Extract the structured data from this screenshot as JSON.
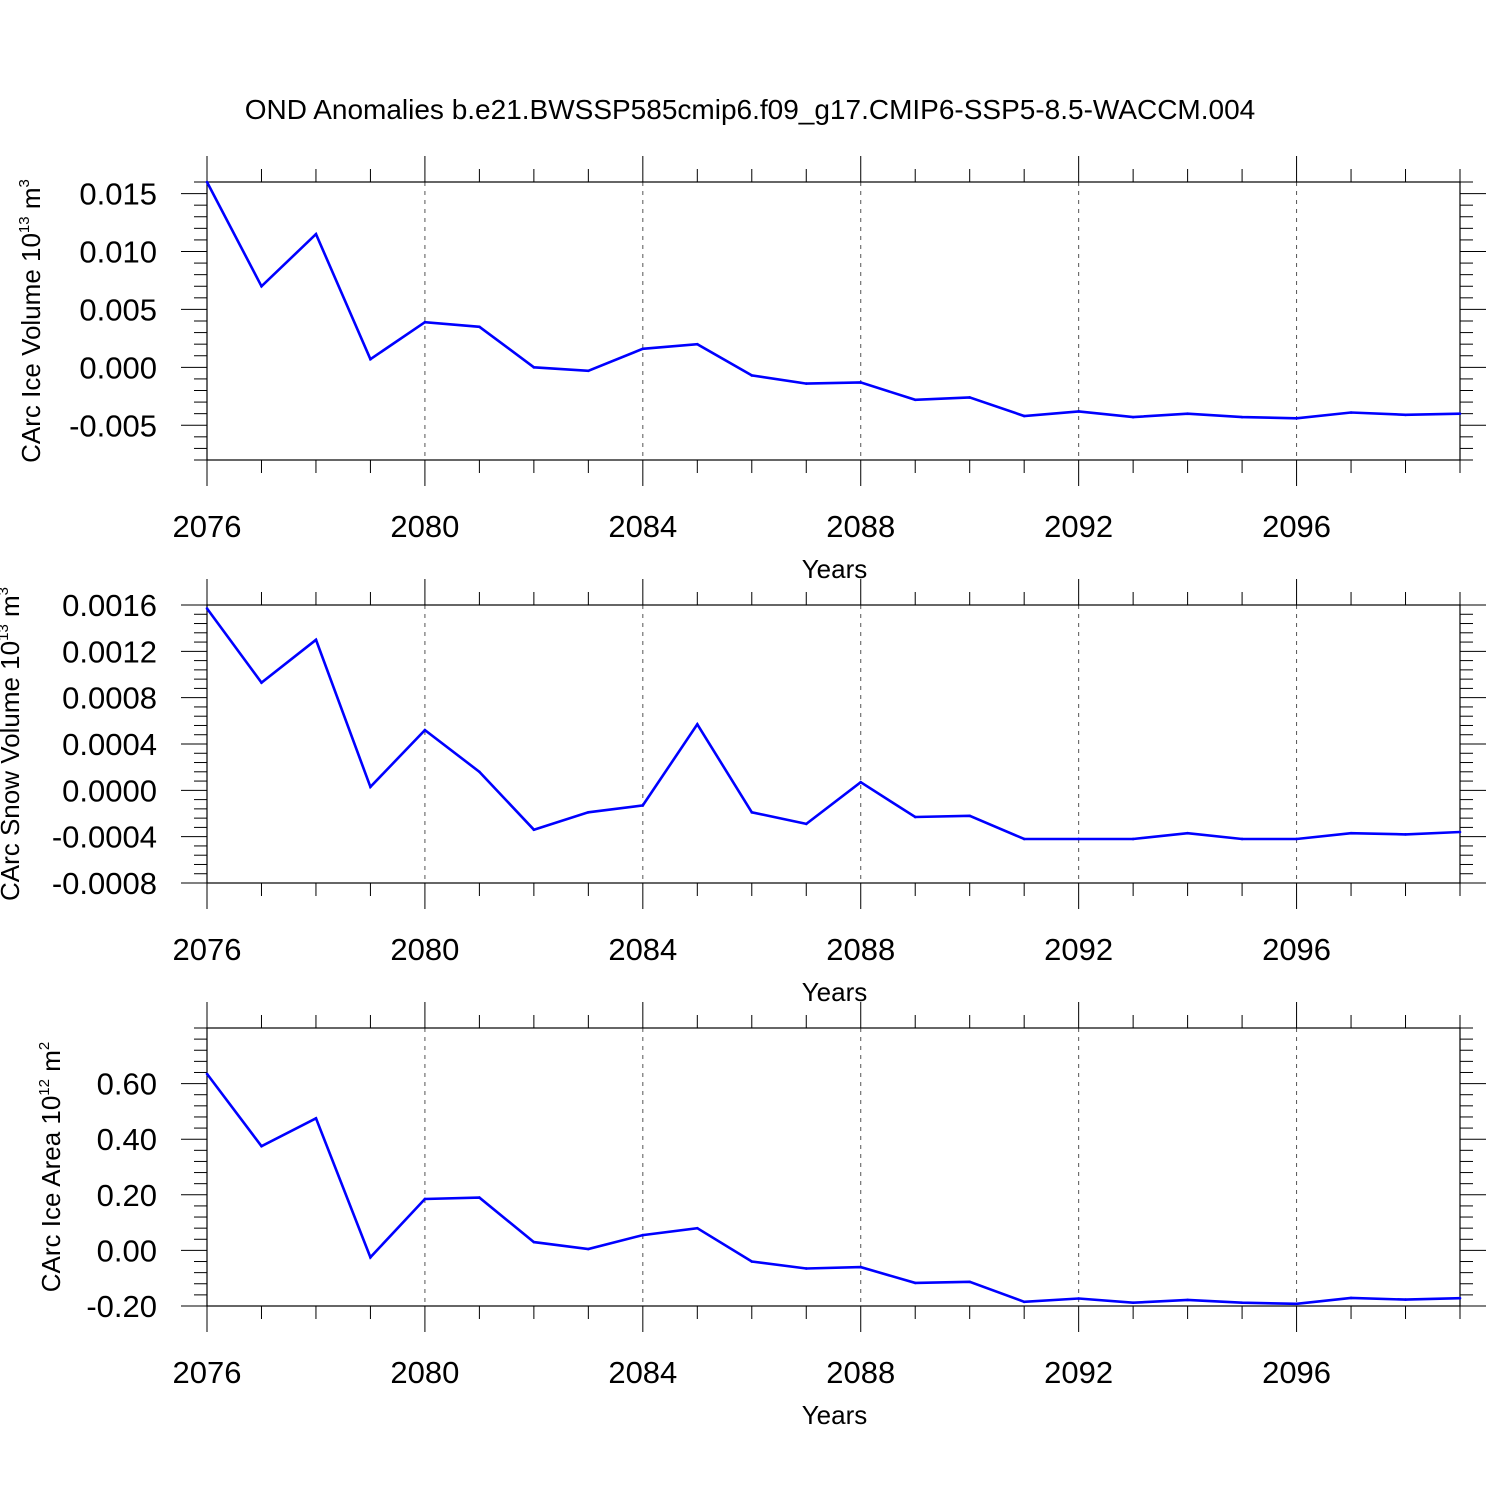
{
  "title": "OND Anomalies b.e21.BWSSP585cmip6.f09_g17.CMIP6-SSP5-8.5-WACCM.004",
  "series_color": "#0000ff",
  "chart_data": [
    {
      "type": "line",
      "id": "ice-volume",
      "ylabel_main": "CArc Ice Volume 10",
      "ylabel_exp": "13",
      "ylabel_unit": " m",
      "ylabel_unit_exp": "3",
      "xlabel": "Years",
      "xlim": [
        2076,
        2099
      ],
      "ylim": [
        -0.008,
        0.016
      ],
      "xticks": [
        2076,
        2080,
        2084,
        2088,
        2092,
        2096
      ],
      "xtick_labels": [
        "2076",
        "2080",
        "2084",
        "2088",
        "2092",
        "2096"
      ],
      "yticks": [
        0.015,
        0.01,
        0.005,
        0.0,
        -0.005
      ],
      "ytick_labels": [
        "0.015",
        "0.010",
        "0.005",
        "0.000",
        "-0.005"
      ],
      "x": [
        2076,
        2077,
        2078,
        2079,
        2080,
        2081,
        2082,
        2083,
        2084,
        2085,
        2086,
        2087,
        2088,
        2089,
        2090,
        2091,
        2092,
        2093,
        2094,
        2095,
        2096,
        2097,
        2098,
        2099
      ],
      "values": [
        0.016,
        0.007,
        0.0115,
        0.0007,
        0.0039,
        0.0035,
        0.0,
        -0.0003,
        0.0016,
        0.002,
        -0.0007,
        -0.0014,
        -0.0013,
        -0.0028,
        -0.0026,
        -0.0042,
        -0.0038,
        -0.0043,
        -0.004,
        -0.0043,
        -0.0044,
        -0.0039,
        -0.0041,
        -0.004
      ]
    },
    {
      "type": "line",
      "id": "snow-volume",
      "ylabel_main": "CArc Snow Volume 10",
      "ylabel_exp": "13",
      "ylabel_unit": " m",
      "ylabel_unit_exp": "3",
      "xlabel": "Years",
      "xlim": [
        2076,
        2099
      ],
      "ylim": [
        -0.0008,
        0.0016
      ],
      "xticks": [
        2076,
        2080,
        2084,
        2088,
        2092,
        2096
      ],
      "xtick_labels": [
        "2076",
        "2080",
        "2084",
        "2088",
        "2092",
        "2096"
      ],
      "yticks": [
        0.0016,
        0.0012,
        0.0008,
        0.0004,
        0.0,
        -0.0004,
        -0.0008
      ],
      "ytick_labels": [
        "0.0016",
        "0.0012",
        "0.0008",
        "0.0004",
        "0.0000",
        "-0.0004",
        "-0.0008"
      ],
      "x": [
        2076,
        2077,
        2078,
        2079,
        2080,
        2081,
        2082,
        2083,
        2084,
        2085,
        2086,
        2087,
        2088,
        2089,
        2090,
        2091,
        2092,
        2093,
        2094,
        2095,
        2096,
        2097,
        2098,
        2099
      ],
      "values": [
        0.00157,
        0.00093,
        0.0013,
        3e-05,
        0.00052,
        0.00016,
        -0.00034,
        -0.00019,
        -0.00013,
        0.00057,
        -0.00019,
        -0.00029,
        7e-05,
        -0.00023,
        -0.00022,
        -0.00042,
        -0.00042,
        -0.00042,
        -0.00037,
        -0.00042,
        -0.00042,
        -0.00037,
        -0.00038,
        -0.00036
      ]
    },
    {
      "type": "line",
      "id": "ice-area",
      "ylabel_main": "CArc Ice Area 10",
      "ylabel_exp": "12",
      "ylabel_unit": " m",
      "ylabel_unit_exp": "2",
      "xlabel": "Years",
      "xlim": [
        2076,
        2099
      ],
      "ylim": [
        -0.2,
        0.8
      ],
      "xticks": [
        2076,
        2080,
        2084,
        2088,
        2092,
        2096
      ],
      "xtick_labels": [
        "2076",
        "2080",
        "2084",
        "2088",
        "2092",
        "2096"
      ],
      "yticks": [
        0.6,
        0.4,
        0.2,
        0.0,
        -0.2
      ],
      "ytick_labels": [
        "0.60",
        "0.40",
        "0.20",
        "0.00",
        "-0.20"
      ],
      "x": [
        2076,
        2077,
        2078,
        2079,
        2080,
        2081,
        2082,
        2083,
        2084,
        2085,
        2086,
        2087,
        2088,
        2089,
        2090,
        2091,
        2092,
        2093,
        2094,
        2095,
        2096,
        2097,
        2098,
        2099
      ],
      "values": [
        0.635,
        0.375,
        0.475,
        -0.025,
        0.185,
        0.19,
        0.03,
        0.005,
        0.055,
        0.08,
        -0.04,
        -0.065,
        -0.06,
        -0.117,
        -0.113,
        -0.185,
        -0.173,
        -0.188,
        -0.178,
        -0.188,
        -0.192,
        -0.171,
        -0.177,
        -0.172
      ]
    }
  ]
}
